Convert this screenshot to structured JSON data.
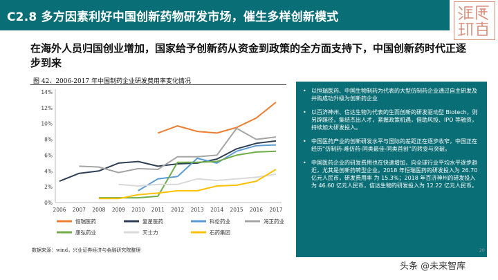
{
  "slide": {
    "title": "C2.8  多方因素利好中国创新药物研发市场，催生多样创新模式",
    "subtitle": "在海外人员归国创业增加，国家给予创新药从资金到政策的全方面支持下，中国创新药时代正逐步到来",
    "logo_text": "渡信研究",
    "page_number": "20",
    "watermark": "头条 @未来智库"
  },
  "chart_data": {
    "type": "line",
    "title": "图 42、2006-2017 年中国制药企业研发费用率变化情况",
    "source": "数据来源：wind，兴业证券经济与金融研究院整理",
    "x": [
      "2006",
      "2007",
      "2008",
      "2009",
      "2010",
      "2011",
      "2012",
      "2013",
      "2014",
      "2015",
      "2016",
      "2017"
    ],
    "y_ticks": [
      "0%",
      "2%",
      "4%",
      "6%",
      "8%",
      "10%",
      "12%",
      "14%"
    ],
    "ylim": [
      0,
      14
    ],
    "grid": false,
    "legend_position": "bottom",
    "series": [
      {
        "name": "恒瑞医药",
        "color": "#ed7d31",
        "values": [
          null,
          null,
          null,
          null,
          null,
          8.8,
          9.7,
          9.0,
          8.8,
          9.5,
          10.7,
          12.7
        ]
      },
      {
        "name": "复星医药",
        "color": "#2e3f54",
        "values": [
          2.7,
          3.7,
          4.0,
          5.0,
          5.2,
          4.6,
          4.9,
          5.0,
          5.5,
          6.8,
          7.5,
          7.8
        ]
      },
      {
        "name": "科伦药业",
        "color": "#5b9bd5",
        "values": [
          null,
          null,
          null,
          null,
          1.5,
          3.0,
          3.3,
          5.6,
          5.0,
          6.5,
          7.2,
          7.3
        ]
      },
      {
        "name": "海正药业",
        "color": "#a5a5a5",
        "values": [
          null,
          4.6,
          4.5,
          3.8,
          4.3,
          4.2,
          5.8,
          5.8,
          6.0,
          9.4,
          8.0,
          8.3
        ]
      },
      {
        "name": "康弘药业",
        "color": "#70ad47",
        "values": [
          null,
          null,
          0.6,
          0.6,
          0.6,
          0.8,
          5.1,
          5.1,
          5.2,
          6.0,
          6.4,
          6.5
        ]
      },
      {
        "name": "天士力",
        "color": "#d9d9d9",
        "values": [
          null,
          null,
          null,
          2.3,
          2.1,
          2.3,
          2.3,
          3.0,
          2.8,
          3.0,
          3.2,
          3.6
        ]
      },
      {
        "name": "石药集团",
        "color": "#ffc000",
        "values": [
          null,
          null,
          0.5,
          0.5,
          1.0,
          1.2,
          1.5,
          1.5,
          2.1,
          2.2,
          2.7,
          4.2
        ]
      }
    ]
  },
  "bullets": [
    "以恒瑞医药、中国生物制药为代表的大型仿制药企业通过自主研发及并购成功升级为创新药企业",
    "以百济神州、信达生物为代表的生而创新的研发驱动型 Biotech，则另辟蹊径，集结杰出人才，紧握政策机遇，借助风投、IPO 等融资，持续加大研发投入。",
    "中国医药产业的创新研发水平与国际的差距正在逐步收窄，中国正在经历“仿制药-难仿药-同类最佳-同类首创”的转变与突破。",
    "中国医药企业的研发费用也在快速增加，向全球行业平均水平逐步趋近，尤其是创新药转型企业。2018 年恒瑞医药的研发投入为 26.70 亿元人民币，研发费用率 为 15.3%；2018 年百济神州的研发投入为 46.60 亿元人民币，信达生物的研发投入为 12.22 亿元人民币。"
  ]
}
